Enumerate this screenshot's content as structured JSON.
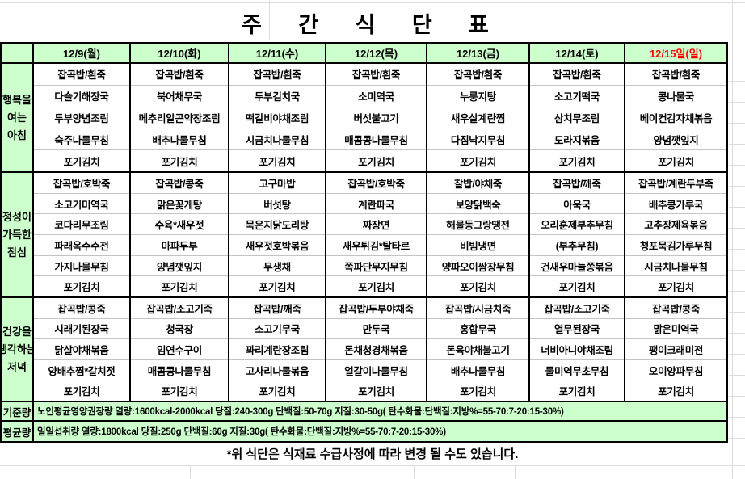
{
  "title": "주 간 식 단 표",
  "days": [
    "12/9(월)",
    "12/10(화)",
    "12/11(수)",
    "12/12(목)",
    "12/13(금)",
    "12/14(토)",
    "12/15일(일)"
  ],
  "highlight_day_index": 6,
  "sections": [
    {
      "label_lines": [
        "행복을",
        "여는",
        "아침"
      ],
      "columns": [
        [
          "잡곡밥/흰죽",
          "다슬기해장국",
          "두부양념조림",
          "숙주나물무침",
          "포기김치"
        ],
        [
          "잡곡밥/흰죽",
          "북어채무국",
          "메추리알곤약장조림",
          "배추나물무침",
          "포기김치"
        ],
        [
          "잡곡밥/흰죽",
          "두부김치국",
          "떡갈비야채조림",
          "시금치나물무침",
          "포기김치"
        ],
        [
          "잡곡밥/흰죽",
          "소미역국",
          "버섯불고기",
          "매콤콩나물무침",
          "포기김치"
        ],
        [
          "잡곡밥/흰죽",
          "누룽지탕",
          "새우살계란찜",
          "다짐낙지무침",
          "포기김치"
        ],
        [
          "잡곡밥/흰죽",
          "소고기떡국",
          "삼치무조림",
          "도라지볶음",
          "포기김치"
        ],
        [
          "잡곡밥/흰죽",
          "콩나물국",
          "베이컨감자채볶음",
          "양념깻잎지",
          "포기김치"
        ]
      ]
    },
    {
      "label_lines": [
        "정성이",
        "가득한",
        "점심"
      ],
      "columns": [
        [
          "잡곡밥/호박죽",
          "소고기미역국",
          "코다리무조림",
          "파래옥수수전",
          "가지나물무침",
          "포기김치"
        ],
        [
          "잡곡밥/콩죽",
          "맑은꽃게탕",
          "수육*새우젓",
          "마파두부",
          "양념깻잎지",
          "포기김치"
        ],
        [
          "고구마밥",
          "버섯탕",
          "묵은지닭도리탕",
          "새우젓호박볶음",
          "무생채",
          "포기김치"
        ],
        [
          "잡곡밥/호박죽",
          "계란파국",
          "짜장면",
          "새우튀김*탈타르",
          "쪽파단무지무침",
          "포기김치"
        ],
        [
          "찰밥/야채죽",
          "보양닭백숙",
          "해물동그랑땡전",
          "비빔냉면",
          "양파오이쌈장무침",
          "포기김치"
        ],
        [
          "잡곡밥/깨죽",
          "아욱국",
          "오리훈제부추무침",
          "(부추무침)",
          "건새우마늘쫑볶음",
          "포기김치"
        ],
        [
          "잡곡밥/계란두부죽",
          "배추콩가루국",
          "고추장제육볶음",
          "청포묵김가루무침",
          "시금치나물무침",
          "포기김치"
        ]
      ]
    },
    {
      "label_lines": [
        "건강을",
        "생각하는",
        "저녁"
      ],
      "columns": [
        [
          "잡곡밥/콩죽",
          "시래기된장국",
          "닭살야채볶음",
          "양배추찜*갈치젓",
          "포기김치"
        ],
        [
          "잡곡밥/소고기죽",
          "청국장",
          "임연수구이",
          "매콤콩나물무침",
          "포기김치"
        ],
        [
          "잡곡밥/깨죽",
          "소고기무국",
          "꽈리계란장조림",
          "고사리나물볶음",
          "포기김치"
        ],
        [
          "잡곡밥/두부야채죽",
          "만두국",
          "돈채청경채볶음",
          "얼갈이나물무침",
          "포기김치"
        ],
        [
          "잡곡밥/시금치죽",
          "홍합무국",
          "돈육야채불고기",
          "배추나물무침",
          "포기김치"
        ],
        [
          "잡곡밥/소고기죽",
          "열무된장국",
          "너비아니야채조림",
          "물미역무초무침",
          "포기김치"
        ],
        [
          "잡곡밥/콩죽",
          "맑은미역국",
          "팽이크래미전",
          "오이양파무침",
          "포기김치"
        ]
      ]
    }
  ],
  "summary_rows": [
    {
      "label": "기준량",
      "text": "노인평균영양권장량 열량:1600kcal-2000kcal 당질:240-300g 단백질:50-70g 지질:30-50g( 탄수화물:단백질:지방%=55-70:7-20:15-30%)"
    },
    {
      "label": "평균량",
      "text": "일일섭취량 열량:1800kcal 당질:250g 단백질:60g 지질:30g( 탄수화물:단백질:지방%=55-70:7-20:15-30%)"
    }
  ],
  "footnote": "*위 식단은 식재료 수급사정에 따라 변경 될 수도 있습니다.",
  "colors": {
    "cell_green": "#ccffcc",
    "highlight_red": "#ff0000",
    "table_border": "#000000",
    "thin_row_line": "#c4c4c4",
    "excel_gridline": "#dcdcdc"
  }
}
